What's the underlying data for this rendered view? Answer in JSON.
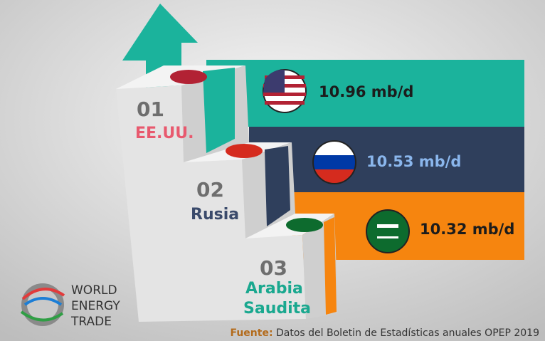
{
  "items": [
    {
      "rank": "01",
      "country": "EE.UU.",
      "value": "10.96 mb/d"
    },
    {
      "rank": "02",
      "country": "Rusia",
      "value": "10.53 mb/d"
    },
    {
      "rank": "03",
      "country": [
        "Arabia",
        "Saudita"
      ],
      "value": "10.32 mb/d"
    }
  ],
  "logo": {
    "lines": [
      "WORLD",
      "ENERGY",
      "TRADE"
    ]
  },
  "source": {
    "label": "Fuente:",
    "text": "Datos del Boletin de Estadísticas anuales OPEP 2019"
  }
}
